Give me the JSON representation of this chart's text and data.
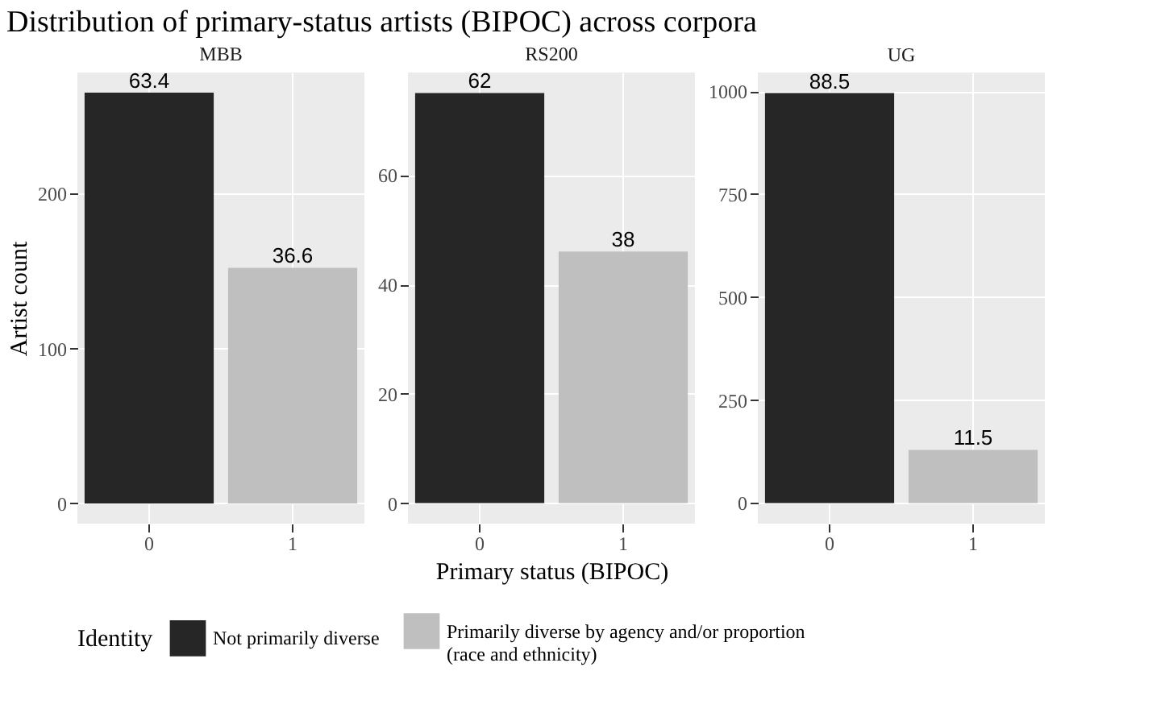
{
  "chart_data": [
    {
      "type": "bar",
      "title": "MBB",
      "ylabel": "Artist count",
      "legend_title": "Identity",
      "legend": "bottom",
      "categories": [
        "0",
        "1"
      ],
      "ylim": [
        -13,
        278
      ],
      "yticks": [
        0,
        100,
        200
      ],
      "grid": true,
      "series": [
        {
          "name": "Not primarily diverse",
          "color": "#262626",
          "values": [
            265,
            null
          ]
        },
        {
          "name": "Primarily diverse by agency and/or proportion\n(race and ethnicity)",
          "color": "#bfbfbf",
          "values": [
            null,
            152
          ]
        }
      ],
      "annotations": [
        "Distribution of primary-status artists (BIPOC) across corpora",
        {
          "text": "63.4",
          "x": "0",
          "y": 265
        },
        {
          "text": "36.6",
          "x": "1",
          "y": 152
        }
      ]
    },
    {
      "type": "bar",
      "title": "RS200",
      "xlabel": "Primary status (BIPOC)",
      "categories": [
        "0",
        "1"
      ],
      "ylim": [
        -3.75,
        78.75
      ],
      "yticks": [
        0,
        20,
        40,
        60
      ],
      "grid": true,
      "series": [
        {
          "color": "#262626",
          "values": [
            75,
            null
          ]
        },
        {
          "color": "#bfbfbf",
          "values": [
            null,
            46
          ]
        }
      ],
      "annotations": [
        {
          "text": "62",
          "x": "0",
          "y": 75
        },
        {
          "text": "38",
          "x": "1",
          "y": 46
        }
      ]
    },
    {
      "type": "bar",
      "title": "UG",
      "categories": [
        "0",
        "1"
      ],
      "ylim": [
        -50,
        1045
      ],
      "yticks": [
        0,
        250,
        500,
        750,
        1000
      ],
      "grid": true,
      "series": [
        {
          "color": "#262626",
          "values": [
            995,
            null
          ]
        },
        {
          "color": "#bfbfbf",
          "values": [
            null,
            129
          ]
        }
      ],
      "annotations": [
        {
          "text": "88.5",
          "x": "0",
          "y": 995
        },
        {
          "text": "11.5",
          "x": "1",
          "y": 129
        }
      ]
    }
  ]
}
